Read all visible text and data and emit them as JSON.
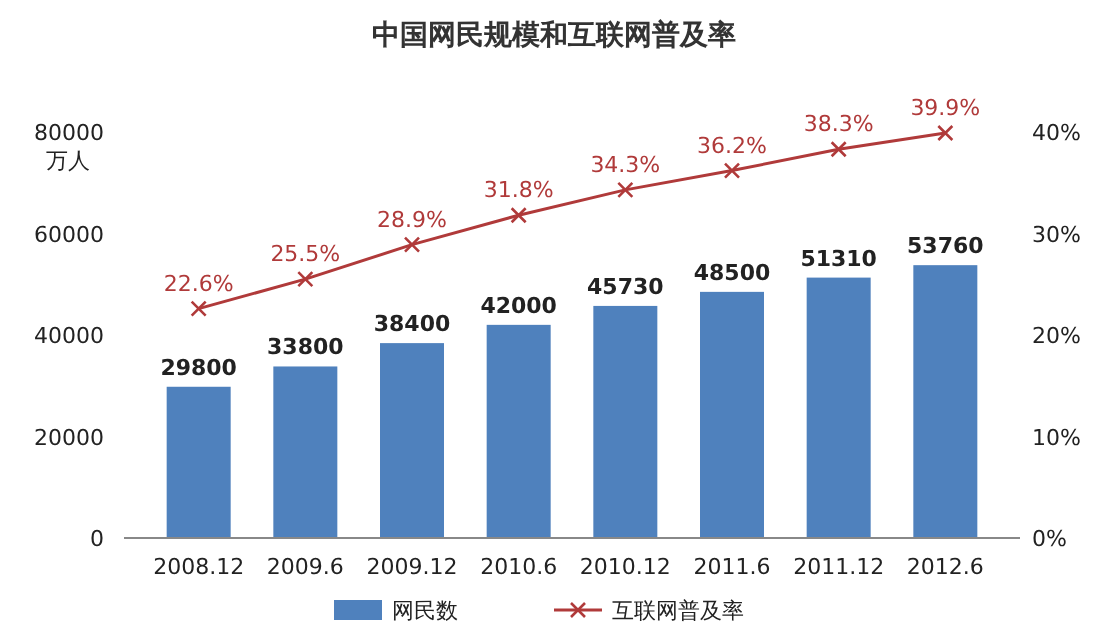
{
  "chart_data": {
    "type": "bar",
    "title": "中国网民规模和互联网普及率",
    "ylabel": "万人",
    "categories": [
      "2008.12",
      "2009.6",
      "2009.12",
      "2010.6",
      "2010.12",
      "2011.6",
      "2011.12",
      "2012.6"
    ],
    "series": [
      {
        "name": "网民数",
        "color": "#4f81bd",
        "values": [
          29800,
          33800,
          38400,
          42000,
          45730,
          48500,
          51310,
          53760
        ],
        "value_labels": [
          "29800",
          "33800",
          "38400",
          "42000",
          "45730",
          "48500",
          "51310",
          "53760"
        ]
      },
      {
        "name": "互联网普及率",
        "type": "line",
        "axis": "y2",
        "color": "#b03a3a",
        "marker": "cross",
        "values": [
          22.6,
          25.5,
          28.9,
          31.8,
          34.3,
          36.2,
          38.3,
          39.9
        ],
        "value_labels": [
          "22.6%",
          "25.5%",
          "28.9%",
          "31.8%",
          "34.3%",
          "36.2%",
          "38.3%",
          "39.9%"
        ]
      }
    ],
    "ylim": [
      0,
      80000
    ],
    "yticks": [
      0,
      20000,
      40000,
      60000,
      80000
    ],
    "y2lim": [
      0,
      40
    ],
    "y2ticks": [
      {
        "value": 0,
        "label": "0%"
      },
      {
        "value": 10,
        "label": "10%"
      },
      {
        "value": 20,
        "label": "20%"
      },
      {
        "value": 30,
        "label": "30%"
      },
      {
        "value": 40,
        "label": "40%"
      }
    ],
    "legend": "bottom",
    "grid": false
  }
}
